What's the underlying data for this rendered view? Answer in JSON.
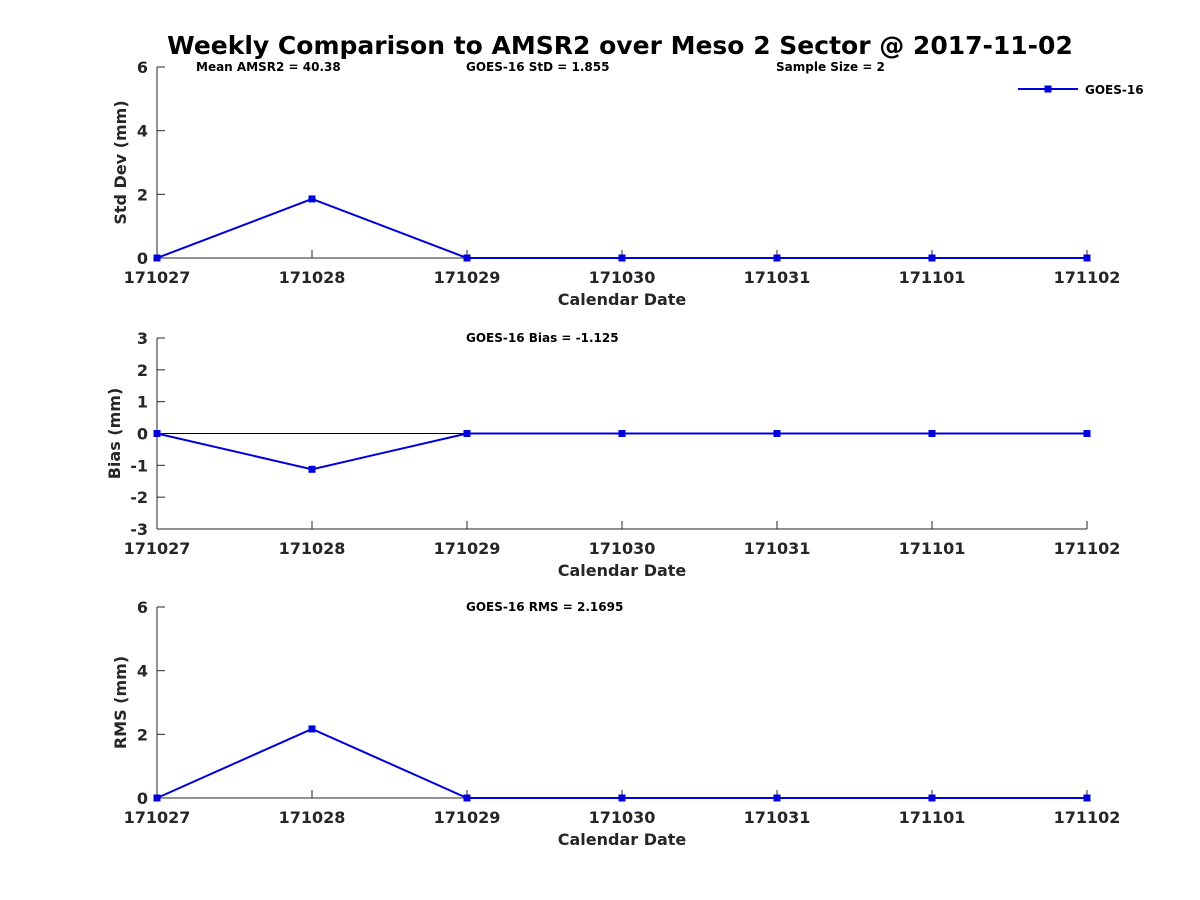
{
  "chart_data": [
    {
      "type": "line",
      "title": "Weekly Comparison to AMSR2 over Meso 2 Sector @ 2017-11-02",
      "xlabel": "Calendar Date",
      "ylabel": "Std Dev (mm)",
      "categories": [
        "171027",
        "171028",
        "171029",
        "171030",
        "171031",
        "171101",
        "171102"
      ],
      "ylim": [
        0,
        6
      ],
      "yticks": [
        0,
        2,
        4,
        6
      ],
      "series": [
        {
          "name": "GOES-16",
          "values": [
            0,
            1.855,
            0,
            0,
            0,
            0,
            0
          ]
        }
      ],
      "annotations": [
        "Mean AMSR2 = 40.38",
        "GOES-16 StD = 1.855",
        "Sample Size = 2"
      ],
      "legend": {
        "entries": [
          "GOES-16"
        ],
        "placement": "top-right"
      },
      "grid": false
    },
    {
      "type": "line",
      "title": "",
      "xlabel": "Calendar Date",
      "ylabel": "Bias (mm)",
      "categories": [
        "171027",
        "171028",
        "171029",
        "171030",
        "171031",
        "171101",
        "171102"
      ],
      "ylim": [
        -3,
        3
      ],
      "yticks": [
        -3,
        -2,
        -1,
        0,
        1,
        2,
        3
      ],
      "series": [
        {
          "name": "GOES-16",
          "values": [
            0,
            -1.125,
            0,
            0,
            0,
            0,
            0
          ]
        }
      ],
      "annotations": [
        "GOES-16 Bias  = -1.125"
      ],
      "zero_line": true,
      "grid": false
    },
    {
      "type": "line",
      "title": "",
      "xlabel": "Calendar Date",
      "ylabel": "RMS (mm)",
      "categories": [
        "171027",
        "171028",
        "171029",
        "171030",
        "171031",
        "171101",
        "171102"
      ],
      "ylim": [
        0,
        6
      ],
      "yticks": [
        0,
        2,
        4,
        6
      ],
      "series": [
        {
          "name": "GOES-16",
          "values": [
            0,
            2.1695,
            0,
            0,
            0,
            0,
            0
          ]
        }
      ],
      "annotations": [
        "GOES-16 RMS = 2.1695"
      ],
      "grid": false
    }
  ],
  "colors": {
    "series": "#0000dd",
    "axis": "#262626",
    "text": "#000000"
  }
}
